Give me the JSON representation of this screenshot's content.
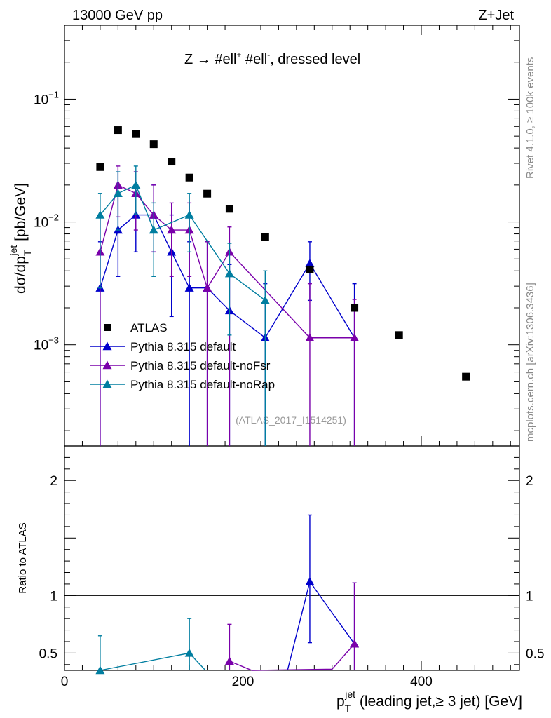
{
  "header": {
    "left": "13000 GeV pp",
    "right": "Z+Jet"
  },
  "side": {
    "rivet": "Rivet 4.1.0, ≥ 100k events",
    "mcplots": "mcplots.cern.ch [arXiv:1306.3436]"
  },
  "chart_data": {
    "type": "scatter",
    "title": "Z → #ell⁺ #ell⁻, dressed level",
    "title_parts": {
      "main": "Z  →  #ell",
      "sup1": "+",
      "mid": " #ell",
      "sup2": "-",
      "tail": ", dressed level"
    },
    "watermark": "(ATLAS_2017_I1514251)",
    "ylabel_parts": {
      "a": "dσ/dp",
      "sub": "T",
      "sup": "jet",
      "b": " [pb/GeV]"
    },
    "xlabel_parts": {
      "a": "p",
      "sub": "T",
      "sup": "jet",
      "b": " (leading jet,≥ 3 jet) [GeV]"
    },
    "ratio_ylabel": "Ratio to ATLAS",
    "xlim": [
      0,
      510
    ],
    "ylim_main": [
      0.00015,
      0.4
    ],
    "ylim_ratio": [
      0.35,
      2.3
    ],
    "main_yticks": [
      {
        "value": 0.1,
        "base": "10",
        "exp": "−1"
      },
      {
        "value": 0.01,
        "base": "10",
        "exp": "−2"
      },
      {
        "value": 0.001,
        "base": "10",
        "exp": "−3"
      }
    ],
    "xticks": [
      {
        "value": 0,
        "label": "0"
      },
      {
        "value": 200,
        "label": "200"
      },
      {
        "value": 400,
        "label": "400"
      }
    ],
    "ratio_yticks": [
      {
        "value": 0.5,
        "label": "0.5"
      },
      {
        "value": 1,
        "label": "1"
      },
      {
        "value": 2,
        "label": "2"
      }
    ],
    "colors": {
      "data": "#000000",
      "default": "#0000cc",
      "noFsr": "#7a00aa",
      "noRap": "#007ea0"
    },
    "data_series": {
      "name": "ATLAS",
      "x": [
        40,
        60,
        80,
        100,
        120,
        140,
        160,
        185,
        225,
        275,
        325,
        375,
        450
      ],
      "y": [
        0.028,
        0.056,
        0.052,
        0.043,
        0.031,
        0.023,
        0.017,
        0.0128,
        0.0075,
        0.0041,
        0.002,
        0.0012,
        0.00055
      ]
    },
    "series": [
      {
        "name": "Pythia 8.315 default",
        "key": "default",
        "x": [
          40,
          60,
          80,
          100,
          120,
          140,
          160,
          185,
          225,
          275,
          325
        ],
        "y": [
          0.0029,
          0.0086,
          0.0114,
          0.0114,
          0.0057,
          0.0029,
          0.0029,
          0.0019,
          0.00114,
          0.0046,
          0.00114
        ],
        "err_lo": [
          0.0029,
          0.005,
          0.0057,
          0.0057,
          0.004,
          0.0029,
          0.0029,
          0.0019,
          0.00114,
          0.0023,
          0.00114
        ],
        "err_hi": [
          0.004,
          0.0086,
          0.0086,
          0.0086,
          0.0057,
          0.004,
          0.004,
          0.0026,
          0.002,
          0.0023,
          0.002
        ],
        "ratio": {
          "x": [
            250,
            275,
            325
          ],
          "y": [
            0.3,
            1.12,
            0.58
          ],
          "err_lo": [
            0,
            0.53,
            0.58
          ],
          "err_hi": [
            0,
            0.58,
            0.53
          ]
        }
      },
      {
        "name": "Pythia 8.315 default-noFsr",
        "key": "noFsr",
        "x": [
          40,
          60,
          80,
          100,
          120,
          140,
          160,
          185,
          275,
          325
        ],
        "y": [
          0.0057,
          0.02,
          0.0171,
          0.0114,
          0.0086,
          0.0086,
          0.0029,
          0.0057,
          0.00114,
          0.00114
        ],
        "err_lo": [
          0.0057,
          0.009,
          0.0085,
          0.0057,
          0.005,
          0.005,
          0.0029,
          0.0057,
          0.00114,
          0.00114
        ],
        "err_hi": [
          0.0057,
          0.0085,
          0.0085,
          0.0086,
          0.0057,
          0.0057,
          0.004,
          0.0034,
          0.002,
          0.0012
        ],
        "ratio": {
          "x": [
            185,
            210,
            300,
            325
          ],
          "y": [
            0.43,
            0.33,
            0.36,
            0.58
          ],
          "err_lo": [
            0.3,
            0,
            0,
            0.58
          ],
          "err_hi": [
            0.32,
            0,
            0,
            0.53
          ]
        }
      },
      {
        "name": "Pythia 8.315 default-noRap",
        "key": "noRap",
        "x": [
          40,
          60,
          80,
          100,
          140,
          185,
          225
        ],
        "y": [
          0.0114,
          0.0171,
          0.02,
          0.0086,
          0.0114,
          0.0038,
          0.0023
        ],
        "err_lo": [
          0.0085,
          0.0085,
          0.0085,
          0.005,
          0.0057,
          0.0026,
          0.0023
        ],
        "err_hi": [
          0.0057,
          0.0085,
          0.0085,
          0.0057,
          0.0057,
          0.0029,
          0.0017
        ],
        "ratio": {
          "x": [
            40,
            140,
            158
          ],
          "y": [
            0.35,
            0.5,
            0.33
          ],
          "err_lo": [
            0.3,
            0.35,
            0
          ],
          "err_hi": [
            0.3,
            0.3,
            0
          ]
        }
      }
    ]
  }
}
